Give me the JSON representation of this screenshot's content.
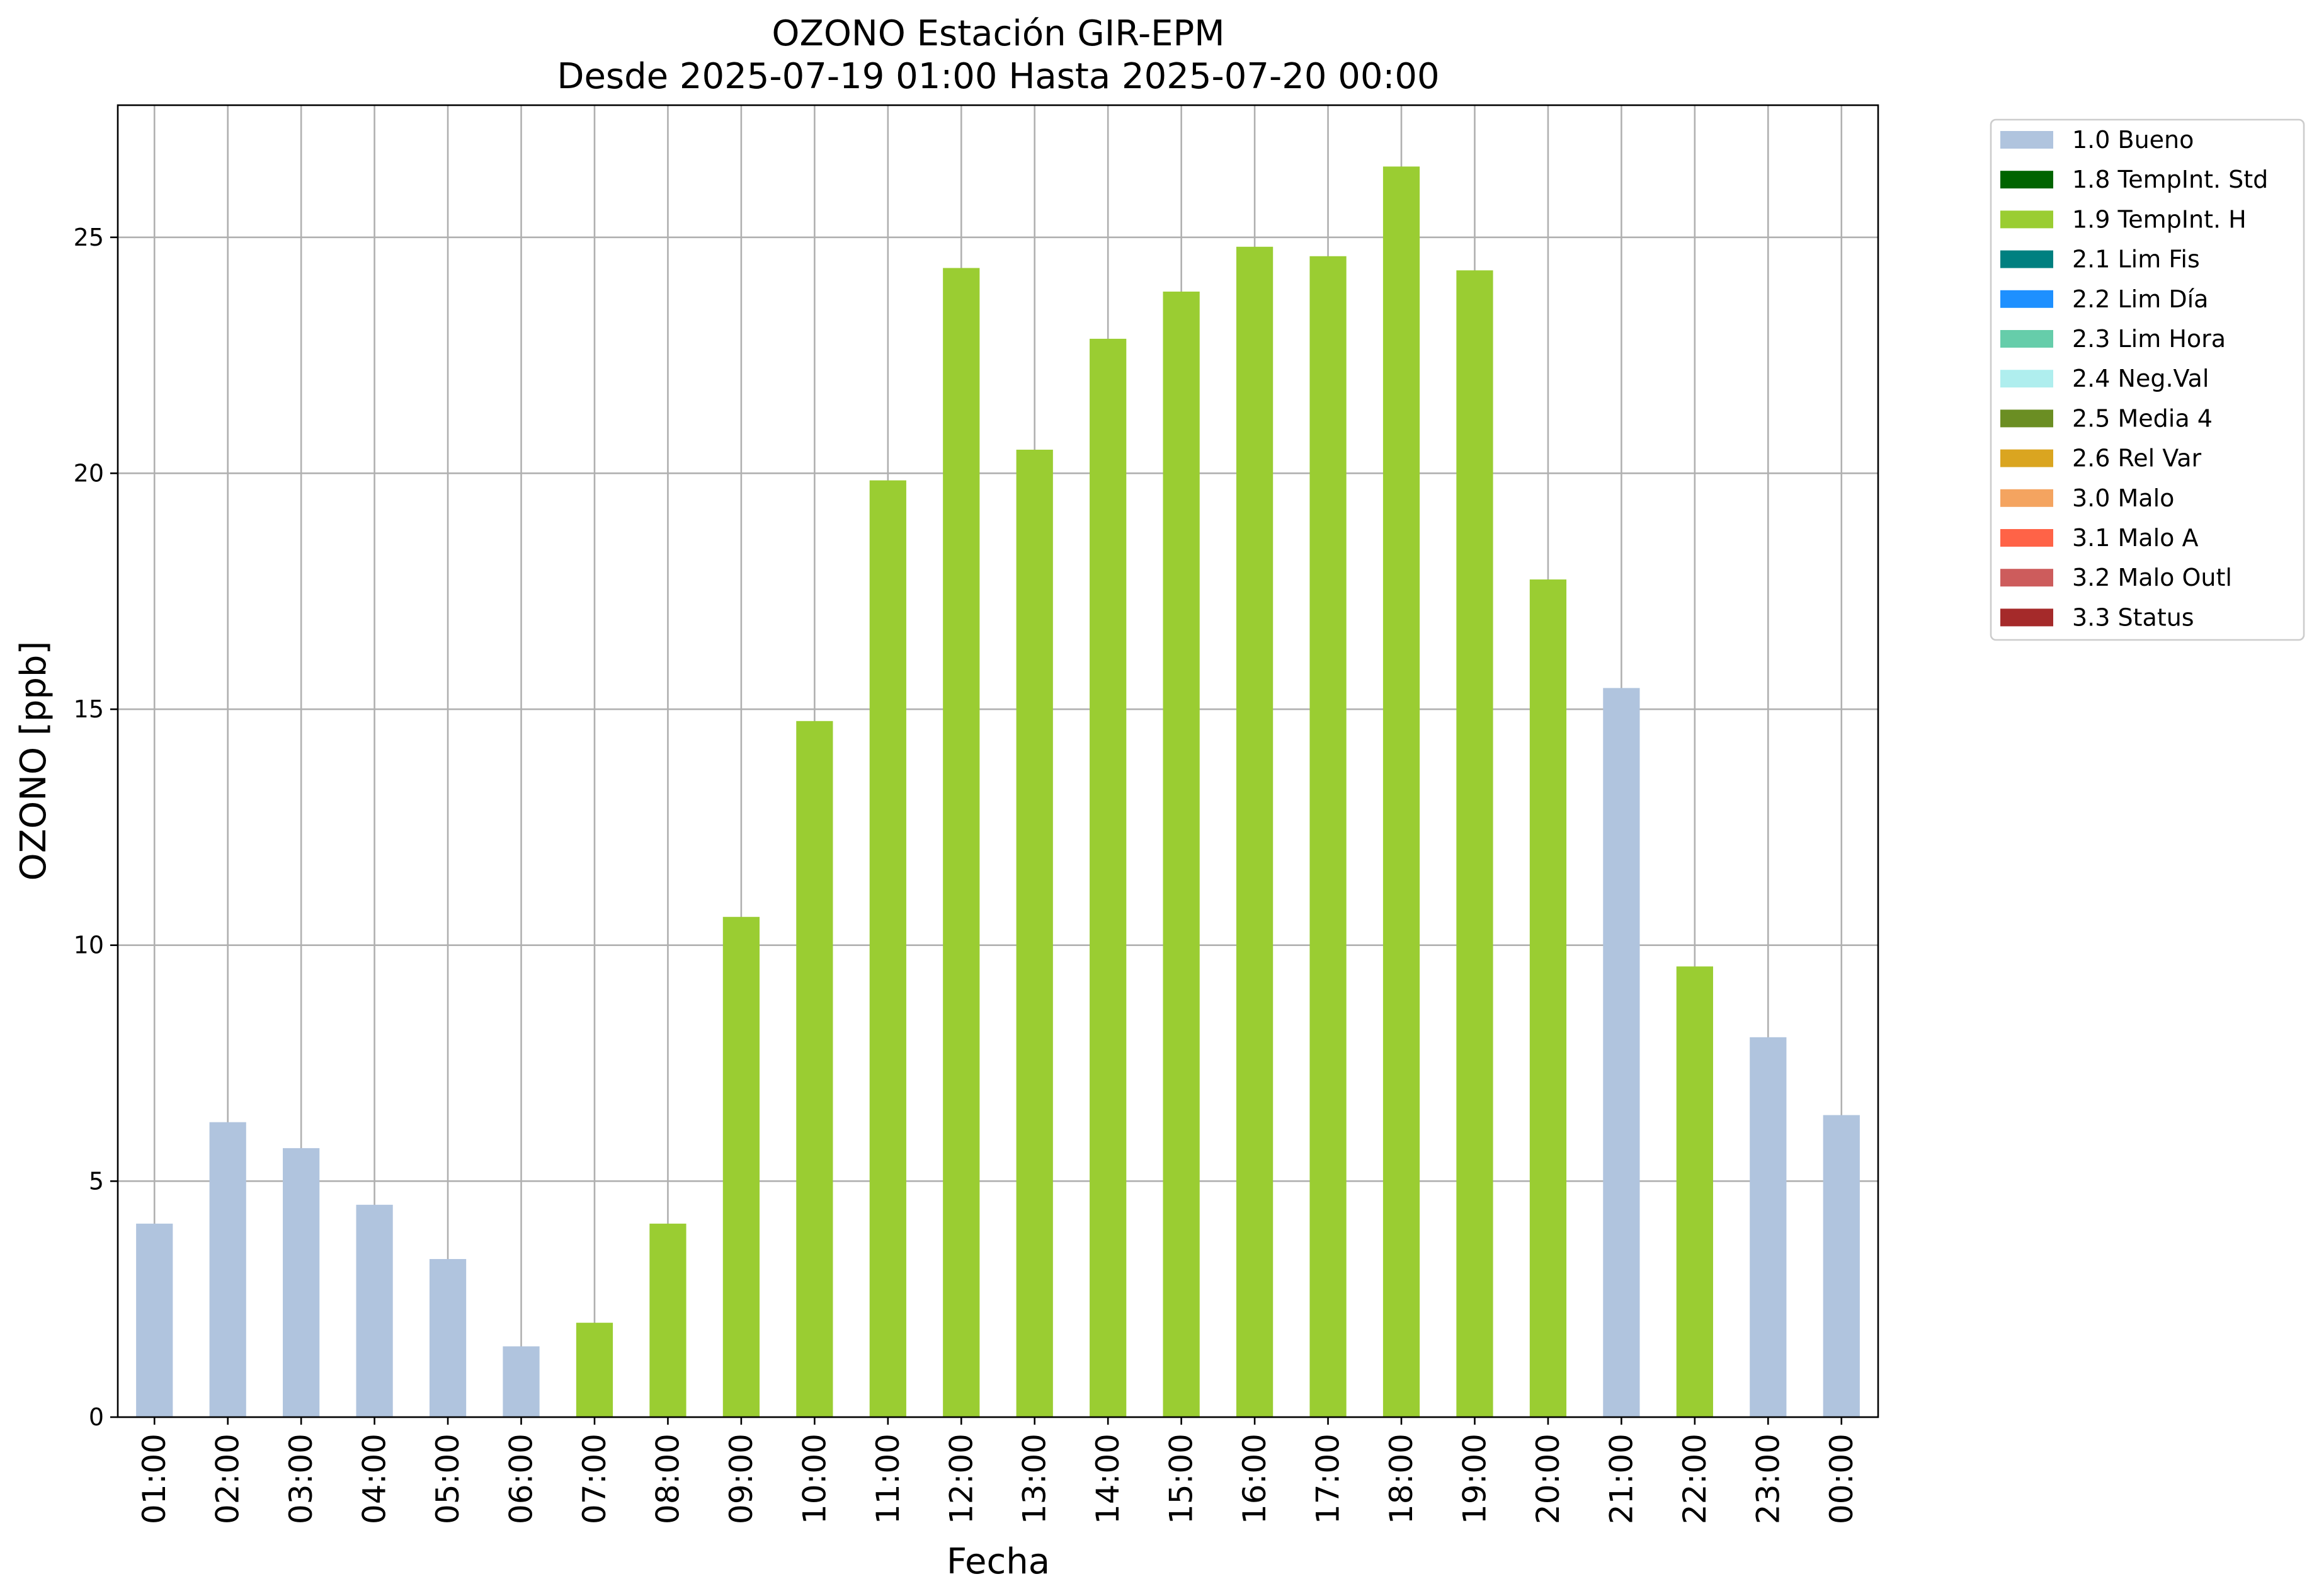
{
  "chart_data": {
    "type": "bar",
    "title": "OZONO Estación GIR-EPM",
    "subtitle": "Desde 2025-07-19 01:00 Hasta 2025-07-20 00:00",
    "xlabel": "Fecha",
    "ylabel": "OZONO [ppb]",
    "ylim": [
      0,
      27.8
    ],
    "yticks": [
      0,
      5,
      10,
      15,
      20,
      25
    ],
    "grid": true,
    "legend_position": "outside-top-right",
    "categories": [
      "01:00",
      "02:00",
      "03:00",
      "04:00",
      "05:00",
      "06:00",
      "07:00",
      "08:00",
      "09:00",
      "10:00",
      "11:00",
      "12:00",
      "13:00",
      "14:00",
      "15:00",
      "16:00",
      "17:00",
      "18:00",
      "19:00",
      "20:00",
      "21:00",
      "22:00",
      "23:00",
      "00:00"
    ],
    "values": [
      4.1,
      6.25,
      5.7,
      4.5,
      3.35,
      1.5,
      2.0,
      4.1,
      10.6,
      14.75,
      19.85,
      24.35,
      20.5,
      22.85,
      23.85,
      24.8,
      24.6,
      26.5,
      24.3,
      17.75,
      15.45,
      9.55,
      8.05,
      6.4
    ],
    "flags": [
      "1.0 Bueno",
      "1.0 Bueno",
      "1.0 Bueno",
      "1.0 Bueno",
      "1.0 Bueno",
      "1.0 Bueno",
      "1.9 TempInt. H",
      "1.9 TempInt. H",
      "1.9 TempInt. H",
      "1.9 TempInt. H",
      "1.9 TempInt. H",
      "1.9 TempInt. H",
      "1.9 TempInt. H",
      "1.9 TempInt. H",
      "1.9 TempInt. H",
      "1.9 TempInt. H",
      "1.9 TempInt. H",
      "1.9 TempInt. H",
      "1.9 TempInt. H",
      "1.9 TempInt. H",
      "1.0 Bueno",
      "1.9 TempInt. H",
      "1.0 Bueno",
      "1.0 Bueno"
    ],
    "legend": [
      {
        "label": "1.0 Bueno",
        "color": "#b0c4de"
      },
      {
        "label": "1.8 TempInt. Std",
        "color": "#006400"
      },
      {
        "label": "1.9 TempInt. H",
        "color": "#9acd32"
      },
      {
        "label": "2.1 Lim Fis",
        "color": "#008080"
      },
      {
        "label": "2.2 Lim Día",
        "color": "#1e90ff"
      },
      {
        "label": "2.3 Lim Hora",
        "color": "#66cdaa"
      },
      {
        "label": "2.4 Neg.Val",
        "color": "#afeeee"
      },
      {
        "label": "2.5 Media 4",
        "color": "#6b8e23"
      },
      {
        "label": "2.6 Rel Var",
        "color": "#daa520"
      },
      {
        "label": "3.0 Malo",
        "color": "#f4a460"
      },
      {
        "label": "3.1 Malo A",
        "color": "#ff6347"
      },
      {
        "label": "3.2 Malo Outl",
        "color": "#cd5c5c"
      },
      {
        "label": "3.3 Status",
        "color": "#a52a2a"
      }
    ]
  }
}
